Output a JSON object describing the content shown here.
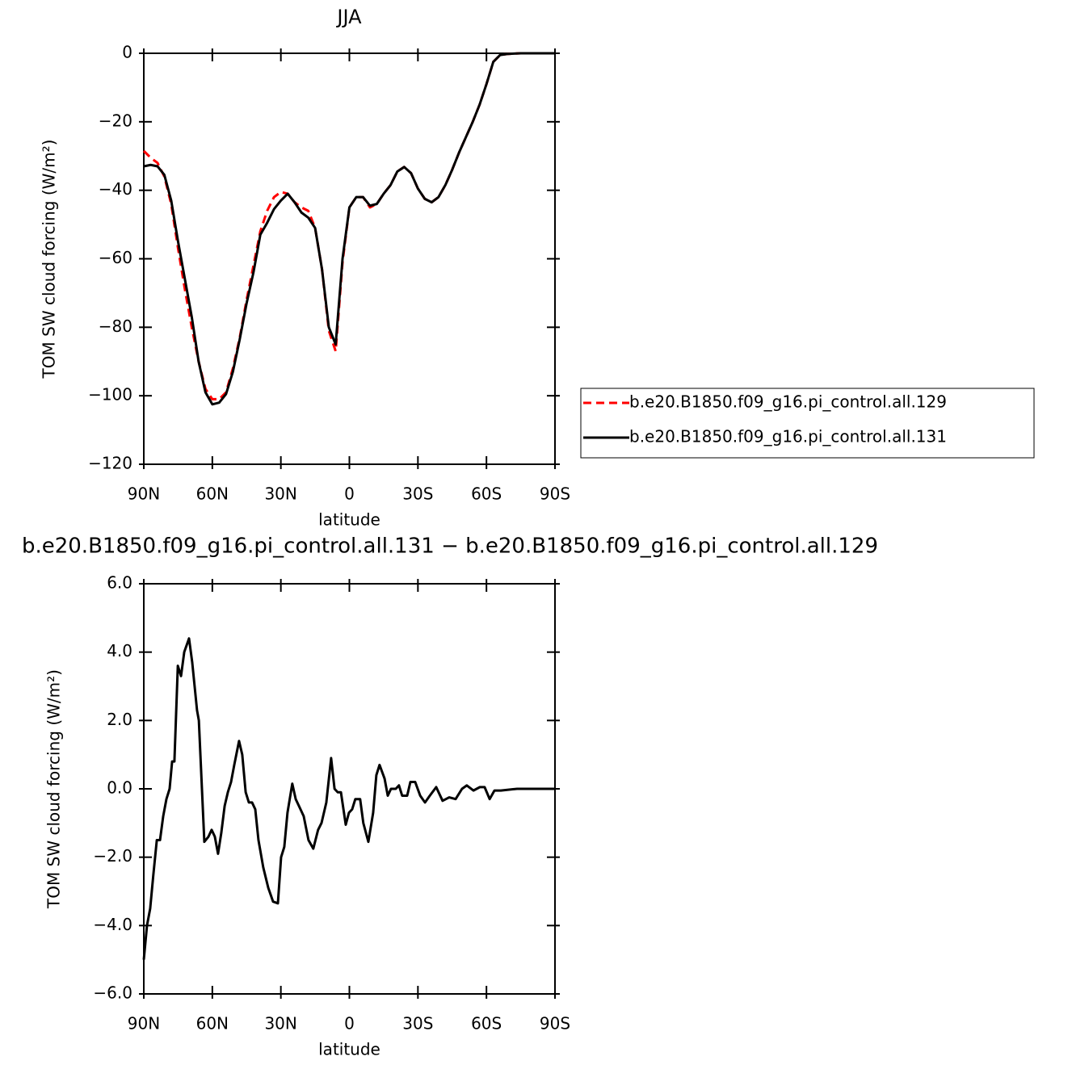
{
  "chart_data": [
    {
      "type": "line",
      "title": "JJA",
      "x_label": "latitude",
      "y_label": "TOM SW cloud forcing (W/m²)",
      "x": [
        90,
        87,
        84,
        81,
        78,
        75,
        72,
        69,
        66,
        63,
        60,
        57,
        54,
        51,
        48,
        45,
        42,
        39,
        36,
        33,
        30,
        27,
        24,
        21,
        18,
        15,
        12,
        9,
        6,
        3,
        0,
        -3,
        -6,
        -9,
        -12,
        -15,
        -18,
        -21,
        -24,
        -27,
        -30,
        -33,
        -36,
        -39,
        -42,
        -45,
        -48,
        -51,
        -54,
        -57,
        -60,
        -63,
        -66,
        -69,
        -72,
        -75,
        -78,
        -81,
        -84,
        -87,
        -90
      ],
      "series": [
        {
          "name": "b.e20.B1850.f09_g16.pi_control.all.129",
          "color": "#ff0000",
          "dashed": true,
          "values": [
            -28.5,
            -30.5,
            -32,
            -36,
            -44,
            -57,
            -69,
            -80,
            -90,
            -98,
            -101,
            -101,
            -99,
            -92,
            -83,
            -72,
            -62,
            -52,
            -46,
            -42,
            -40.5,
            -41,
            -43.5,
            -45,
            -46,
            -51,
            -63,
            -81,
            -87,
            -61,
            -45,
            -42,
            -42,
            -45,
            -44,
            -41,
            -38.5,
            -34.5,
            -33.2,
            -35,
            -39.5,
            -42.5,
            -43.5,
            -42,
            -38.5,
            -34,
            -29,
            -24.5,
            -20,
            -15,
            -9,
            -2.5,
            -0.5,
            -0.2,
            -0.1,
            0,
            0,
            0,
            0,
            0,
            0
          ]
        },
        {
          "name": "b.e20.B1850.f09_g16.pi_control.all.131",
          "color": "#000000",
          "dashed": false,
          "values": [
            -33,
            -32.6,
            -33,
            -35.5,
            -43,
            -55,
            -66,
            -77,
            -90,
            -99,
            -102.5,
            -102,
            -99.5,
            -93,
            -83.5,
            -73,
            -64,
            -53,
            -49.5,
            -45.5,
            -43,
            -41,
            -43.5,
            -46.5,
            -48,
            -51,
            -63,
            -80,
            -85,
            -60,
            -45,
            -42,
            -42,
            -44.5,
            -44,
            -41,
            -38.5,
            -34.5,
            -33.2,
            -35,
            -39.5,
            -42.5,
            -43.5,
            -42,
            -38.5,
            -34,
            -29,
            -24.5,
            -20,
            -15,
            -9,
            -2.5,
            -0.5,
            -0.2,
            -0.1,
            0,
            0,
            0,
            0,
            0,
            0
          ]
        }
      ],
      "xlim": [
        90,
        -90
      ],
      "xticks": [
        {
          "value": 90,
          "label": "90N"
        },
        {
          "value": 60,
          "label": "60N"
        },
        {
          "value": 30,
          "label": "30N"
        },
        0,
        {
          "value": -30,
          "label": "30S"
        },
        {
          "value": -60,
          "label": "60S"
        },
        {
          "value": -90,
          "label": "90S"
        }
      ],
      "ylim": [
        -120,
        0
      ],
      "yticks": [
        {
          "value": -120,
          "label": "−120"
        },
        {
          "value": -100,
          "label": "−100"
        },
        {
          "value": -80,
          "label": "−80"
        },
        {
          "value": -60,
          "label": "−60"
        },
        {
          "value": -40,
          "label": "−40"
        },
        {
          "value": -20,
          "label": "−20"
        },
        0
      ],
      "legend": "outside-right"
    },
    {
      "type": "line",
      "title": "b.e20.B1850.f09_g16.pi_control.all.131 − b.e20.B1850.f09_g16.pi_control.all.129",
      "x_label": "latitude",
      "y_label": "TOM SW cloud forcing (W/m²)",
      "x": [
        90,
        88.6,
        87.2,
        85.8,
        84.3,
        82.9,
        81.5,
        80.1,
        78.7,
        77.6,
        76.6,
        75.1,
        73.7,
        72.3,
        70.2,
        68.8,
        66.7,
        65.9,
        63.5,
        61.7,
        60.3,
        58.9,
        57.5,
        56.1,
        54.6,
        53.2,
        51.8,
        50.4,
        48.3,
        46.9,
        45.4,
        44,
        42.6,
        41.2,
        39.8,
        37.7,
        35.5,
        33.4,
        31.3,
        29.9,
        28.5,
        27.1,
        25,
        23.5,
        22.1,
        20,
        17.9,
        15.8,
        13.7,
        12.2,
        10.1,
        8,
        6.5,
        5.1,
        3.7,
        1.6,
        0.2,
        -1.2,
        -2.6,
        -4.7,
        -6.1,
        -8.3,
        -10.4,
        -11.8,
        -13.2,
        -15.4,
        -16.8,
        -18.2,
        -20.3,
        -21.7,
        -23.1,
        -25.3,
        -26.7,
        -28.8,
        -31,
        -33.1,
        -35.2,
        -38,
        -40.8,
        -43.7,
        -46.5,
        -49.3,
        -51.4,
        -54.3,
        -57.1,
        -59.2,
        -61.4,
        -63.5,
        -66.3,
        -73.4,
        -90
      ],
      "series": [
        {
          "color": "#000000",
          "dashed": false,
          "values": [
            -5,
            -4,
            -3.5,
            -2.5,
            -1.5,
            -1.5,
            -0.8,
            -0.3,
            0,
            0.8,
            0.8,
            3.6,
            3.3,
            4,
            4.4,
            3.7,
            2.3,
            2,
            -1.55,
            -1.4,
            -1.2,
            -1.4,
            -1.9,
            -1.3,
            -0.5,
            -0.1,
            0.2,
            0.7,
            1.4,
            1,
            -0.1,
            -0.4,
            -0.4,
            -0.6,
            -1.5,
            -2.3,
            -2.9,
            -3.3,
            -3.35,
            -2,
            -1.7,
            -0.7,
            0.15,
            -0.3,
            -0.5,
            -0.8,
            -1.5,
            -1.75,
            -1.2,
            -1,
            -0.4,
            0.9,
            0,
            -0.1,
            -0.1,
            -1.05,
            -0.7,
            -0.6,
            -0.3,
            -0.3,
            -1,
            -1.55,
            -0.7,
            0.4,
            0.7,
            0.3,
            -0.2,
            0,
            0,
            0.1,
            -0.2,
            -0.2,
            0.2,
            0.2,
            -0.2,
            -0.4,
            -0.2,
            0.05,
            -0.35,
            -0.25,
            -0.3,
            0,
            0.1,
            -0.05,
            0.05,
            0.05,
            -0.3,
            -0.05,
            -0.05,
            0,
            0
          ]
        }
      ],
      "xlim": [
        90,
        -90
      ],
      "xticks": [
        {
          "value": 90,
          "label": "90N"
        },
        {
          "value": 60,
          "label": "60N"
        },
        {
          "value": 30,
          "label": "30N"
        },
        0,
        {
          "value": -30,
          "label": "30S"
        },
        {
          "value": -60,
          "label": "60S"
        },
        {
          "value": -90,
          "label": "90S"
        }
      ],
      "ylim": [
        -6,
        6
      ],
      "yticks": [
        {
          "value": -6,
          "label": "−6.0"
        },
        {
          "value": -4,
          "label": "−4.0"
        },
        {
          "value": -2,
          "label": "−2.0"
        },
        {
          "value": 0,
          "label": "0.0"
        },
        {
          "value": 2,
          "label": "2.0"
        },
        {
          "value": 4,
          "label": "4.0"
        },
        {
          "value": 6,
          "label": "6.0"
        }
      ]
    }
  ]
}
